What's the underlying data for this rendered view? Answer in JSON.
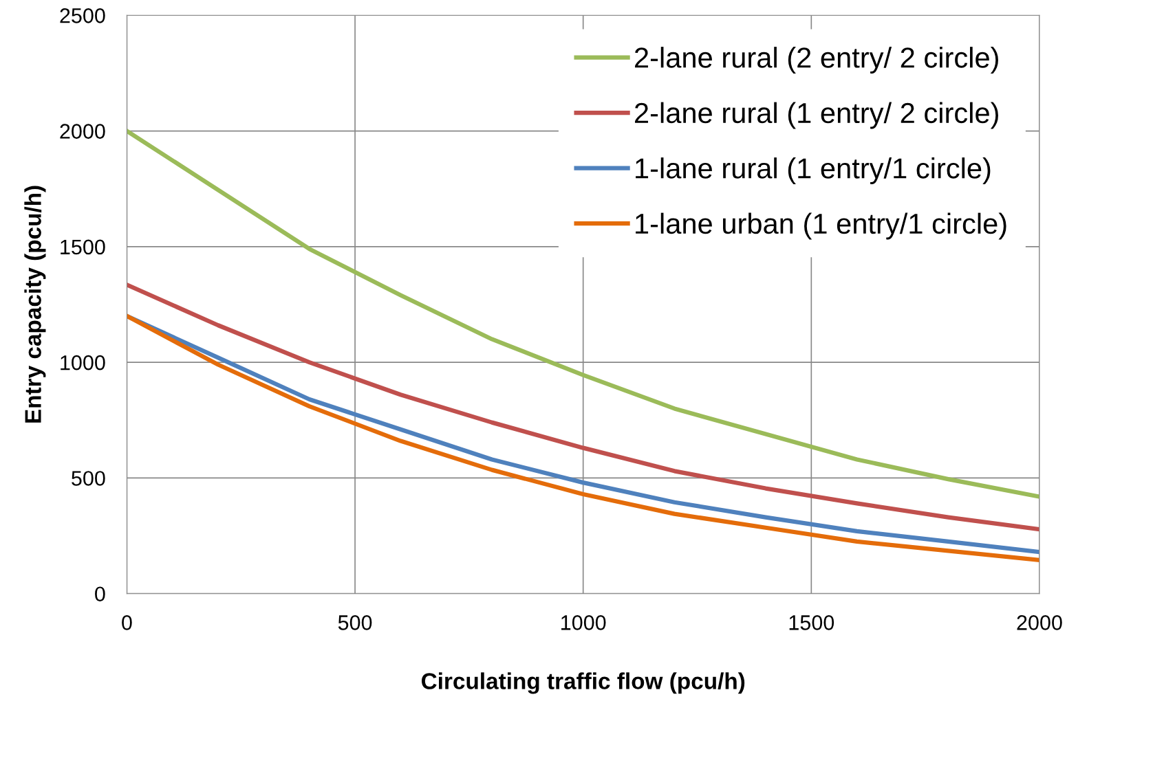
{
  "chart_data": {
    "type": "line",
    "xlabel": "Circulating traffic flow (pcu/h)",
    "ylabel": "Entry capacity (pcu/h)",
    "x": [
      0,
      200,
      400,
      600,
      800,
      1000,
      1200,
      1400,
      1600,
      1800,
      2000
    ],
    "series": [
      {
        "name": "2-lane rural (2 entry/ 2 circle)",
        "color": "#9bbb59",
        "values": [
          2000,
          1745,
          1490,
          1290,
          1100,
          945,
          800,
          690,
          580,
          495,
          419
        ]
      },
      {
        "name": "2-lane rural (1 entry/ 2 circle)",
        "color": "#c0504d",
        "values": [
          1335,
          1160,
          1000,
          860,
          740,
          630,
          530,
          455,
          390,
          330,
          278
        ]
      },
      {
        "name": "1-lane rural (1 entry/1 circle)",
        "color": "#4f81bd",
        "values": [
          1200,
          1020,
          840,
          710,
          580,
          480,
          395,
          330,
          270,
          225,
          180
        ]
      },
      {
        "name": "1-lane urban (1 entry/1 circle)",
        "color": "#e46c0a",
        "values": [
          1200,
          990,
          810,
          660,
          535,
          430,
          345,
          285,
          225,
          185,
          145
        ]
      }
    ],
    "xlim": [
      0,
      2000
    ],
    "xticks": [
      0,
      500,
      1000,
      1500,
      2000
    ],
    "ylim": [
      0,
      2500
    ],
    "yticks": [
      0,
      500,
      1000,
      1500,
      2000,
      2500
    ],
    "grid": true,
    "legend": "top right",
    "line_style": "solid",
    "marker": "none"
  }
}
